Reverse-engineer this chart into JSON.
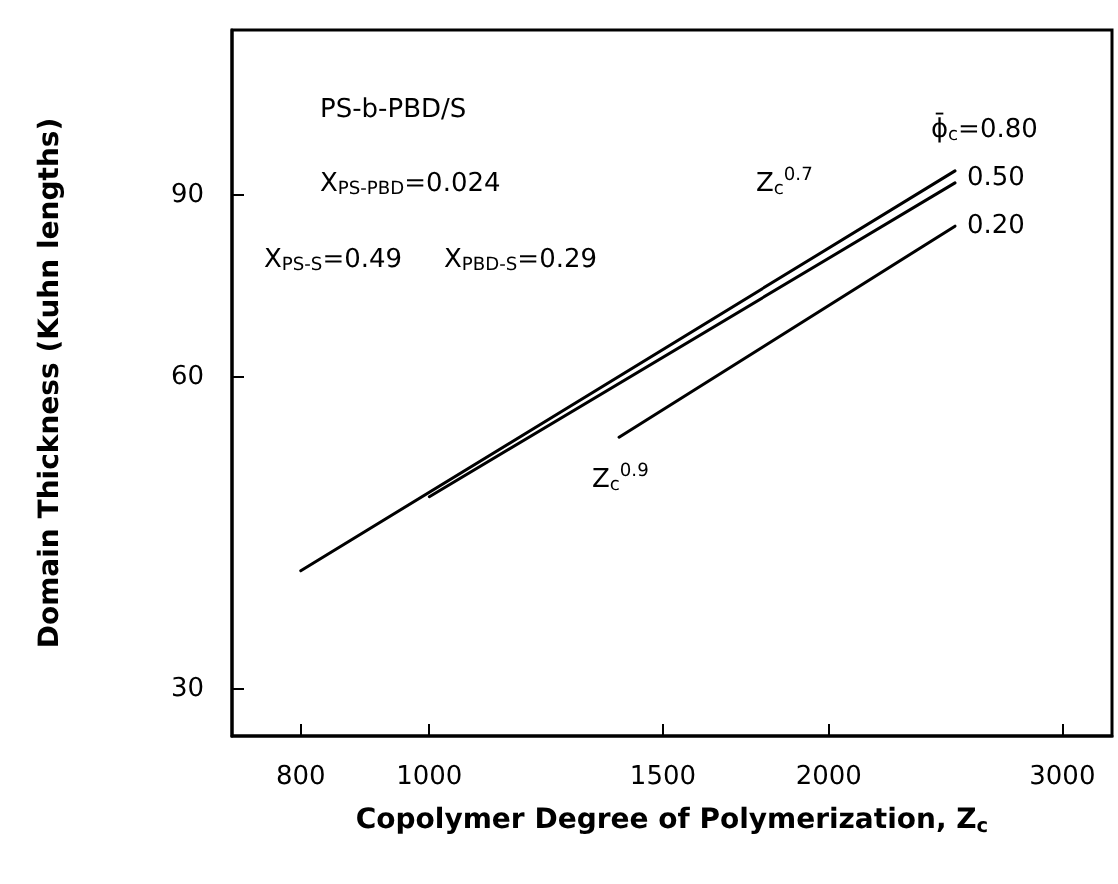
{
  "chart_data": {
    "type": "line",
    "xlabel": "Copolymer Degree of Polymerization, Z$_{c}$",
    "ylabel": "Domain Thickness (Kuhn lengths)",
    "log": "xy",
    "xlim": [
      710,
      3270
    ],
    "xticks": [
      800,
      1000,
      1500,
      2000,
      3000
    ],
    "ylim": [
      27,
      130
    ],
    "yticks": [
      30,
      60,
      90
    ],
    "grid": false,
    "legend": false,
    "marker": "none",
    "line_style": "solid",
    "series": [
      {
        "name": "ϕ̄$_{c}$=0.80",
        "color": "#000000",
        "x": [
          800,
          2490
        ],
        "values": [
          39,
          95
        ]
      },
      {
        "name": "0.50",
        "color": "#000000",
        "x": [
          1000,
          2490
        ],
        "values": [
          46,
          92.5
        ]
      },
      {
        "name": "0.20",
        "color": "#000000",
        "x": [
          1390,
          2490
        ],
        "values": [
          52.5,
          84
        ]
      }
    ],
    "annotations": [
      "PS-b-PBD/S",
      "X$_{PS-PBD}$=0.024",
      "X$_{PS-S}$=0.49",
      "X$_{PBD-S}$=0.29",
      "Z$_{c}$$^{0.7}$",
      "Z$_{c}$$^{0.9}$"
    ]
  }
}
